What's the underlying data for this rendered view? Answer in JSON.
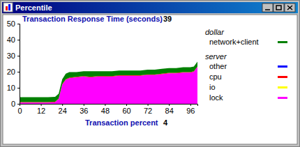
{
  "window": {
    "title": "Percentile"
  },
  "chart_data": {
    "type": "area",
    "stacked": true,
    "title": "Transaction Response Time (seconds)",
    "x_label": "Transaction percent",
    "annotations": [
      "39",
      "4"
    ],
    "x": [
      0,
      4,
      8,
      12,
      16,
      20,
      22,
      24,
      26,
      28,
      32,
      36,
      40,
      44,
      48,
      52,
      56,
      60,
      64,
      68,
      72,
      76,
      80,
      84,
      88,
      92,
      96,
      98,
      100
    ],
    "xlim": [
      0,
      100
    ],
    "xticks": [
      0,
      12,
      24,
      36,
      48,
      60,
      72,
      84,
      96
    ],
    "ylim": [
      0,
      50
    ],
    "yticks": [
      0,
      10,
      20,
      30,
      40,
      50
    ],
    "series": [
      {
        "name": "network+client",
        "group": "dollar",
        "color": "#008000",
        "values": [
          3,
          3,
          3,
          3,
          3,
          3,
          3,
          3,
          3.5,
          3.5,
          3,
          3,
          3.5,
          3,
          3,
          3,
          3,
          3,
          3,
          3,
          3,
          3,
          3,
          3,
          3,
          3,
          3,
          3,
          3
        ]
      },
      {
        "name": "other",
        "group": "server",
        "color": "#0000ff",
        "values": [
          0,
          0,
          0,
          0,
          0,
          0,
          0,
          0,
          0,
          0,
          0,
          0,
          0,
          0,
          0,
          0,
          0,
          0,
          0,
          0,
          0,
          0,
          0,
          0,
          0,
          0,
          0,
          0,
          0
        ]
      },
      {
        "name": "cpu",
        "group": "server",
        "color": "#ff0000",
        "values": [
          0.3,
          0.3,
          0.3,
          0.3,
          0.3,
          0.3,
          0.3,
          0.3,
          0.3,
          0.3,
          0.3,
          0.3,
          0.3,
          0.3,
          0.3,
          0.3,
          0.3,
          0.3,
          0.3,
          0.3,
          0.3,
          0.3,
          0.3,
          0.3,
          0.3,
          0.3,
          0.3,
          0.3,
          0.3
        ]
      },
      {
        "name": "io",
        "group": "server",
        "color": "#ffff00",
        "values": [
          0,
          0,
          0,
          0,
          0,
          0,
          0,
          0,
          0,
          0,
          0,
          0,
          0,
          0,
          0,
          0,
          0,
          0,
          0,
          0,
          0,
          0,
          0,
          0,
          0,
          0,
          0,
          0,
          0
        ]
      },
      {
        "name": "lock",
        "group": "server",
        "color": "#ff00ff",
        "values": [
          0.8,
          0.8,
          0.8,
          0.8,
          0.8,
          1,
          3,
          12,
          15,
          16,
          16.5,
          17,
          16.5,
          17,
          17,
          17,
          17.5,
          17.5,
          17.5,
          17.5,
          18,
          18,
          18.5,
          19,
          19,
          19.5,
          19.5,
          20,
          23
        ]
      }
    ]
  }
}
